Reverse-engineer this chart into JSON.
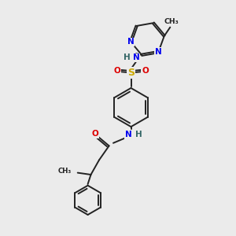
{
  "bg_color": "#ebebeb",
  "bond_color": "#222222",
  "bond_width": 1.4,
  "dbl_off": 0.038,
  "atom_colors": {
    "N": "#0000ee",
    "O": "#dd0000",
    "S": "#ccaa00",
    "H": "#336666",
    "C": "#222222"
  },
  "fs_main": 7.5,
  "fs_small": 6.2,
  "fig_w": 3.0,
  "fig_h": 3.0,
  "dpi": 100,
  "xlim": [
    0,
    8
  ],
  "ylim": [
    0,
    10
  ]
}
